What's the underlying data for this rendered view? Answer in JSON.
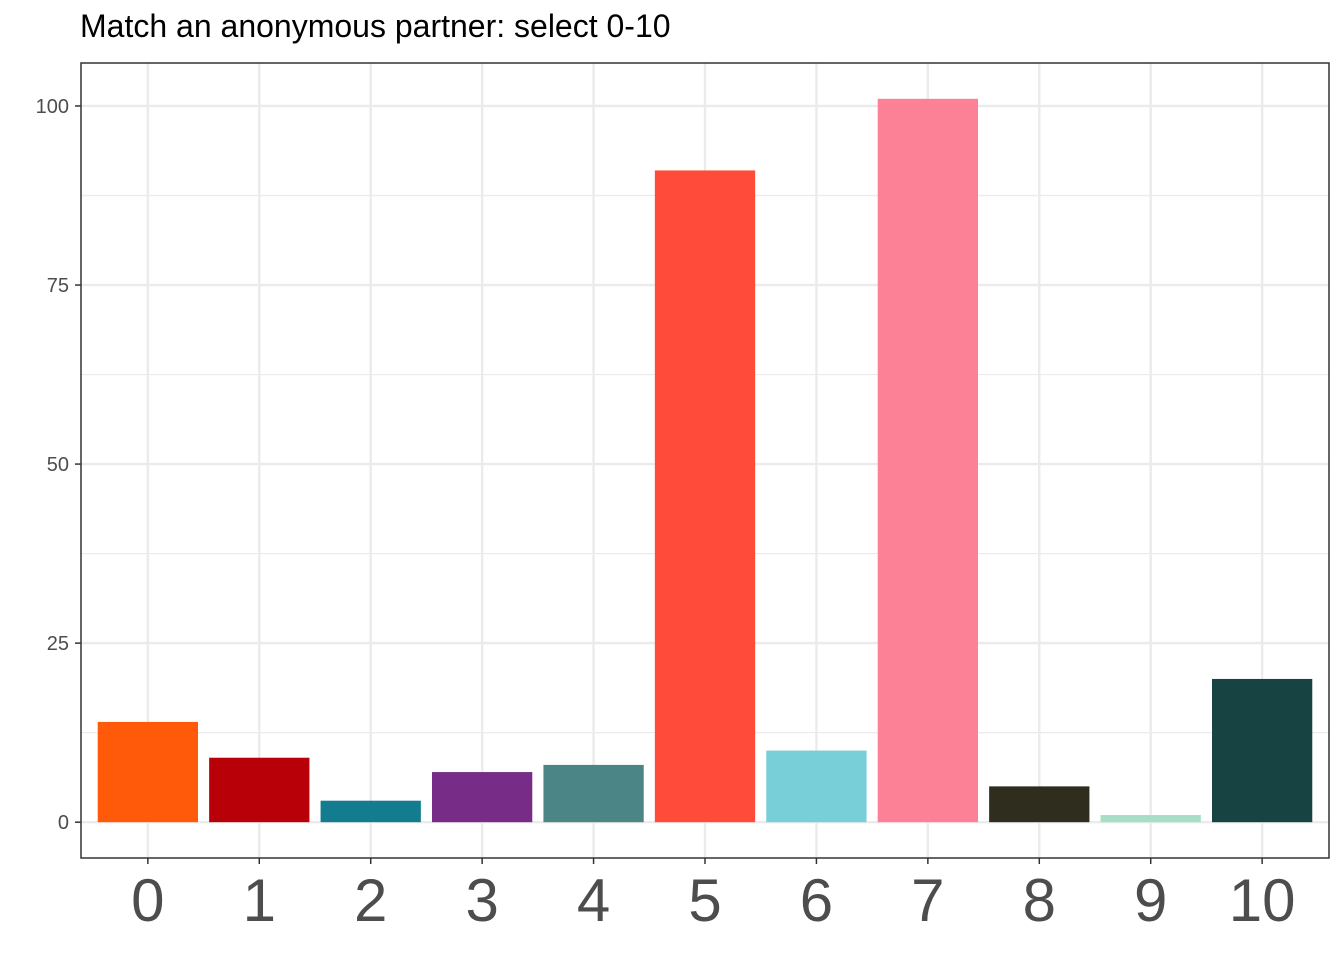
{
  "chart_data": {
    "type": "bar",
    "title": "Match an anonymous partner: select 0-10",
    "xlabel": "",
    "ylabel": "",
    "categories": [
      "0",
      "1",
      "2",
      "3",
      "4",
      "5",
      "6",
      "7",
      "8",
      "9",
      "10"
    ],
    "values": [
      14,
      9,
      3,
      7,
      8,
      91,
      10,
      101,
      5,
      1,
      20
    ],
    "colors": [
      "#FF5A0A",
      "#B80008",
      "#137C8E",
      "#772D87",
      "#4B8585",
      "#FF4B3A",
      "#78CFD8",
      "#FC8197",
      "#2E2D1E",
      "#A6DFC5",
      "#174443"
    ],
    "ylim": [
      -5,
      106
    ],
    "yticks": [
      0,
      25,
      50,
      75,
      100
    ],
    "grid": true,
    "legend": "none"
  }
}
